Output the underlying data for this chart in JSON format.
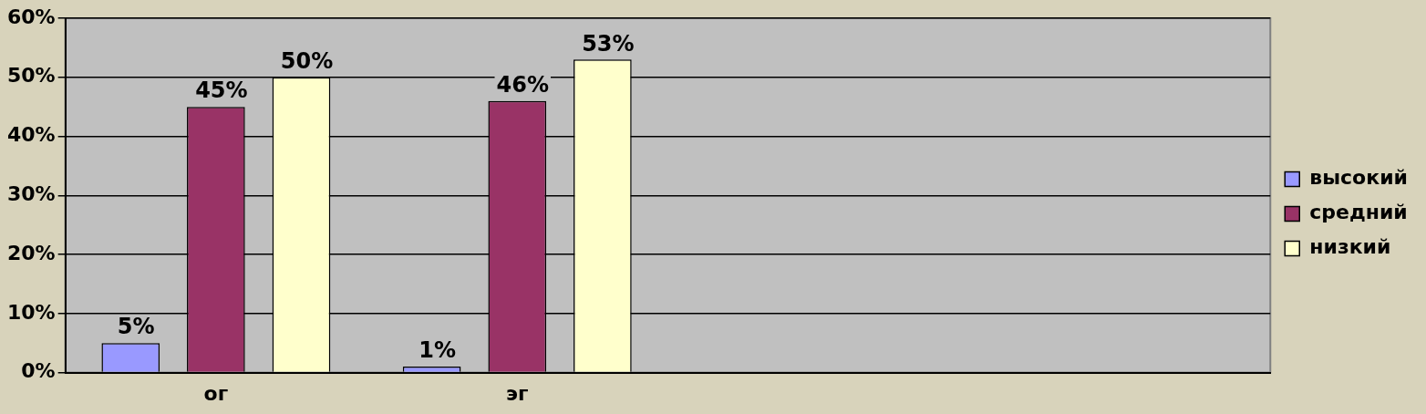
{
  "chart_data": {
    "type": "bar",
    "categories": [
      "ог",
      "эг",
      null,
      null
    ],
    "series": [
      {
        "name": "высокий",
        "color": "#9999ff",
        "values": [
          5,
          1,
          null,
          null
        ],
        "value_labels": [
          "5%",
          "1%",
          null,
          null
        ]
      },
      {
        "name": "средний",
        "color": "#993366",
        "values": [
          45,
          46,
          null,
          null
        ],
        "value_labels": [
          "45%",
          "46%",
          null,
          null
        ]
      },
      {
        "name": "низкий",
        "color": "#ffffcc",
        "values": [
          50,
          53,
          null,
          null
        ],
        "value_labels": [
          "50%",
          "53%",
          null,
          null
        ]
      }
    ],
    "ylim": [
      0,
      60
    ],
    "yticks": [
      {
        "value": 0,
        "label": "0%"
      },
      {
        "value": 10,
        "label": "10%"
      },
      {
        "value": 20,
        "label": "20%"
      },
      {
        "value": 30,
        "label": "30%"
      },
      {
        "value": 40,
        "label": "40%"
      },
      {
        "value": 50,
        "label": "50%"
      },
      {
        "value": 60,
        "label": "60%"
      }
    ],
    "grid": "y",
    "legend": "right"
  }
}
